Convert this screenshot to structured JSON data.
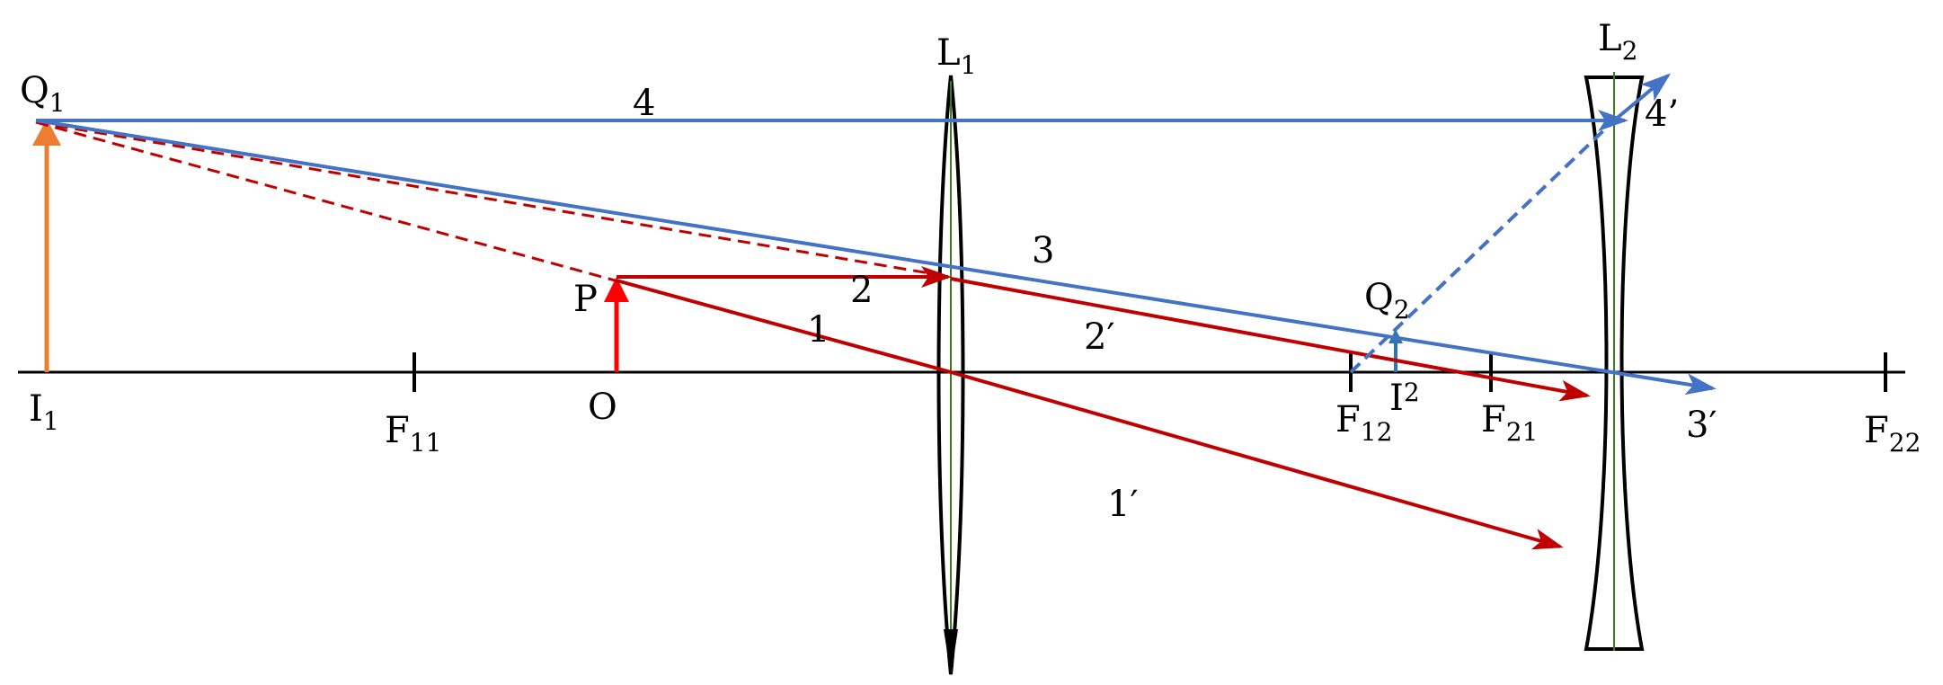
{
  "colors": {
    "axis": "#000000",
    "lens_outline": "#000000",
    "lens_center": "#3a7d1e",
    "image_arrow": "#ED7D31",
    "object_arrow": "#FF0000",
    "red_ray": "#C00000",
    "blue_ray": "#4472C4",
    "small_image_arrow": "#2E75B6"
  },
  "lenses": {
    "L1": {
      "letter": "L",
      "sub": "1",
      "type": "converging"
    },
    "L2": {
      "letter": "L",
      "sub": "2",
      "type": "diverging"
    }
  },
  "points": {
    "Q1": {
      "letter": "Q",
      "sub": "1"
    },
    "Q2": {
      "letter": "Q",
      "sub": "2"
    },
    "P": {
      "letter": "P"
    },
    "O": {
      "letter": "O"
    },
    "I1": {
      "letter": "I",
      "sub": "1"
    },
    "I2": {
      "letter": "I",
      "sub": "2"
    },
    "F11": {
      "letter": "F",
      "sub": "11"
    },
    "F12": {
      "letter": "F",
      "sub": "12"
    },
    "F21": {
      "letter": "F",
      "sub": "21"
    },
    "F22": {
      "letter": "F",
      "sub": "22"
    }
  },
  "rays": {
    "r1": "1",
    "r1p": "1′",
    "r2": "2",
    "r2p": "2′",
    "r3": "3",
    "r3p": "3′",
    "r4": "4",
    "r4p": "4’"
  },
  "icons": {
    "converging_lens": "biconvex-lens-icon",
    "diverging_lens": "biconcave-lens-icon",
    "arrow": "arrow-head-icon"
  }
}
